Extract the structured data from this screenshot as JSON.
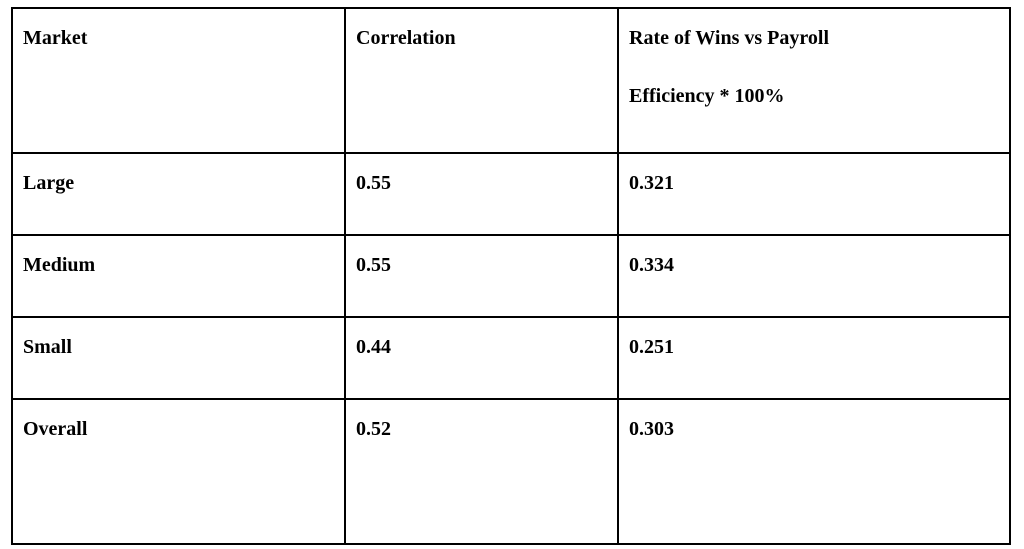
{
  "table": {
    "headers": {
      "market": "Market",
      "correlation": "Correlation",
      "rate_line1": "Rate of Wins vs Payroll",
      "rate_line2": "Efficiency * 100%"
    },
    "rows": [
      {
        "market": "Large",
        "correlation": "0.55",
        "rate": "0.321"
      },
      {
        "market": "Medium",
        "correlation": "0.55",
        "rate": "0.334"
      },
      {
        "market": "Small",
        "correlation": "0.44",
        "rate": "0.251"
      },
      {
        "market": "Overall",
        "correlation": "0.52",
        "rate": "0.303"
      }
    ]
  }
}
